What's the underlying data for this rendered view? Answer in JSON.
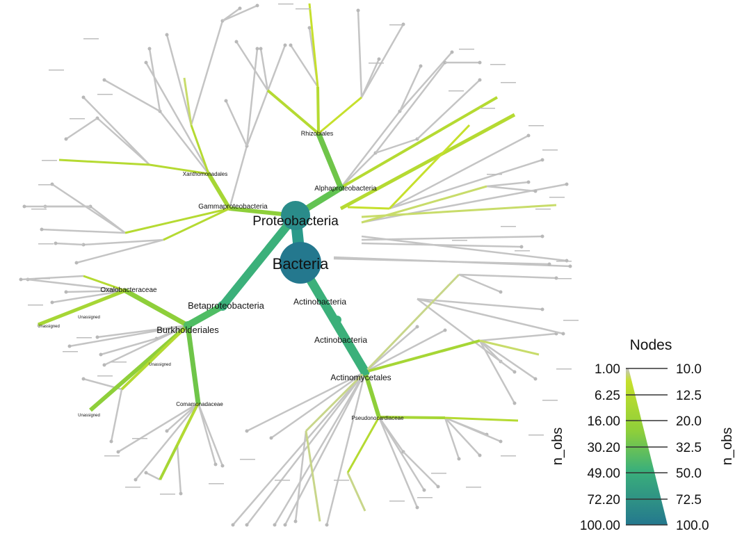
{
  "tree": {
    "root": "Bacteria",
    "labels": {
      "bacteria": "Bacteria",
      "proteobacteria": "Proteobacteria",
      "alphaproteobacteria": "Alphaproteobacteria",
      "gammaproteobacteria": "Gammaproteobacteria",
      "betaproteobacteria": "Betaproteobacteria",
      "actinobacteria_class": "Actinobacteria",
      "actinobacteria_phylum": "Actinobacteria",
      "rhizobiales": "Rhizobiales",
      "xanthomonadales": "Xanthomonadales",
      "burkholderiales": "Burkholderiales",
      "oxalobacteraceae": "Oxalobacteraceae",
      "actinomycetales": "Actinomycetales",
      "comamonadaceae": "Comamonadaceae",
      "pseudonocardiaceae": "Pseudonocardiaceae",
      "unassigned_1": "Unassigned",
      "unassigned_2": "Unassigned",
      "unassigned_3": "Unassigned",
      "unassigned_4": "Unassigned"
    }
  },
  "legend": {
    "title": "Nodes",
    "left_axis_label": "n_obs",
    "right_axis_label": "n_obs",
    "left_ticks": [
      "1.00",
      "6.25",
      "16.00",
      "30.20",
      "49.00",
      "72.20",
      "100.00"
    ],
    "right_ticks": [
      "10.0",
      "12.5",
      "20.0",
      "32.5",
      "50.0",
      "72.5",
      "100.0"
    ]
  },
  "colors": {
    "low": "#c4c4c4",
    "light_green": "#c6e02c",
    "green": "#8ecf3a",
    "teal_green": "#3bb07a",
    "teal": "#2a9a8a",
    "dark_teal": "#24788e"
  }
}
